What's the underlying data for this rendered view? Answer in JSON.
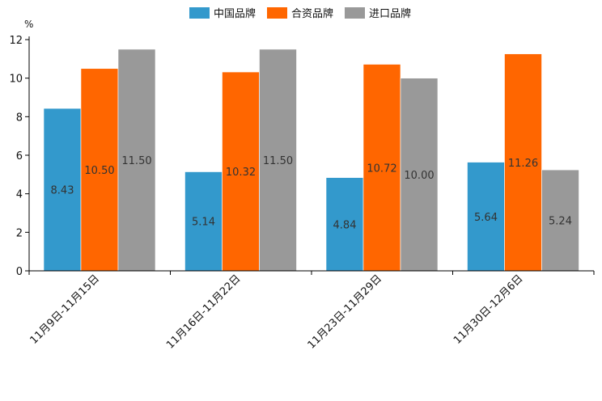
{
  "chart_data": {
    "type": "bar",
    "title": "",
    "xlabel": "",
    "ylabel": "%",
    "ylim": [
      0,
      12
    ],
    "yticks": [
      0,
      2,
      4,
      6,
      8,
      10,
      12
    ],
    "legend_position": "top",
    "categories": [
      "11月9日-11月15日",
      "11月16日-11月22日",
      "11月23日-11月29日",
      "11月30日-12月6日"
    ],
    "series": [
      {
        "name": "中国品牌",
        "color": "#3399cc",
        "values": [
          8.43,
          5.14,
          4.84,
          5.64
        ],
        "labels": [
          "8.43",
          "5.14",
          "4.84",
          "5.64"
        ]
      },
      {
        "name": "合资品牌",
        "color": "#ff6600",
        "values": [
          10.5,
          10.32,
          10.72,
          11.26
        ],
        "labels": [
          "10.50",
          "10.32",
          "10.72",
          "11.26"
        ]
      },
      {
        "name": "进口品牌",
        "color": "#999999",
        "values": [
          11.5,
          11.5,
          10.0,
          5.24
        ],
        "labels": [
          "11.50",
          "11.50",
          "10.00",
          "5.24"
        ]
      }
    ]
  }
}
